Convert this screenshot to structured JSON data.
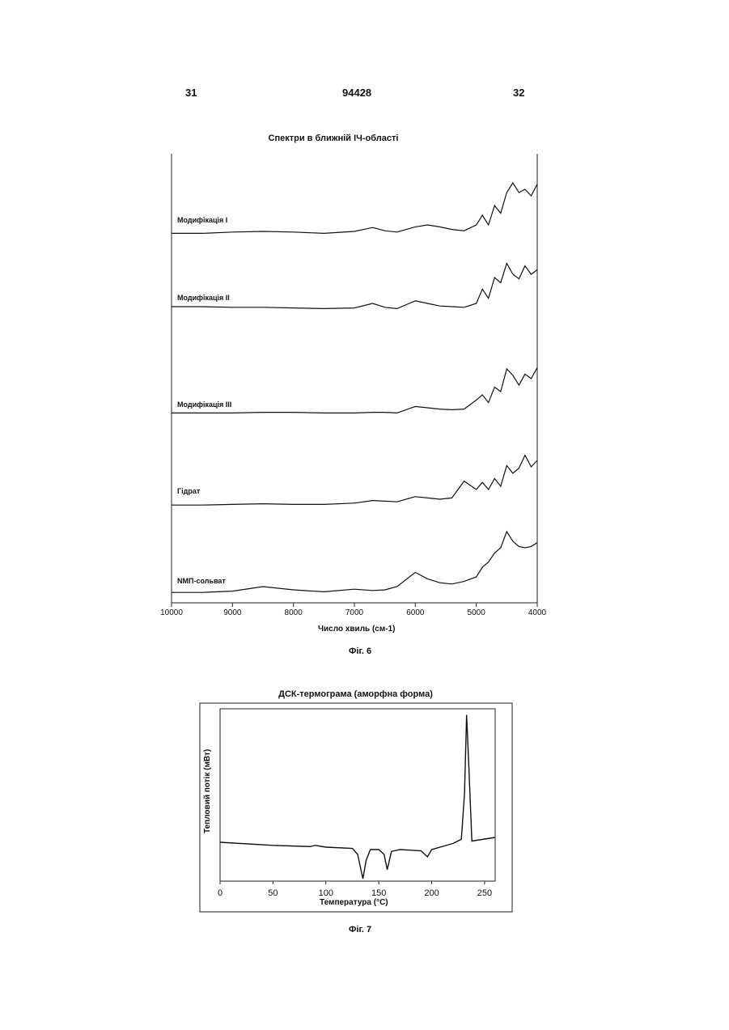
{
  "page_header": {
    "left": "31",
    "center": "94428",
    "right": "32"
  },
  "figure6": {
    "title": "Спектри в ближній ІЧ-області",
    "caption": "Фіг. 6",
    "xlabel": "Число хвиль (см-1)",
    "xticks": [
      "10000",
      "9000",
      "8000",
      "7000",
      "6000",
      "5000",
      "4000"
    ],
    "spectra_labels": [
      "Модифікація І",
      "Модифікація ІІ",
      "Модифікація ІІІ",
      "Гідрат",
      "NMП-сольват"
    ]
  },
  "figure7": {
    "title": "ДСК-термограма (аморфна форма)",
    "caption": "Фіг. 7",
    "xlabel": "Температура (°С)",
    "ylabel": "Тепловий потік (мВт)",
    "xticks": [
      "0",
      "50",
      "100",
      "150",
      "200",
      "250"
    ]
  },
  "chart_data": [
    {
      "type": "line",
      "title": "Спектри в ближній ІЧ-області",
      "xlabel": "Число хвиль (см-1)",
      "ylabel": "",
      "xlim": [
        10000,
        4000
      ],
      "x_reversed": true,
      "series": [
        {
          "name": "Модифікація І",
          "x": [
            10000,
            9500,
            9000,
            8500,
            8000,
            7500,
            7000,
            6700,
            6500,
            6300,
            6000,
            5800,
            5600,
            5400,
            5200,
            5000,
            4900,
            4800,
            4700,
            4600,
            4500,
            4400,
            4300,
            4200,
            4100,
            4000
          ],
          "values": [
            0.02,
            0.02,
            0.04,
            0.05,
            0.04,
            0.02,
            0.05,
            0.11,
            0.06,
            0.04,
            0.12,
            0.15,
            0.12,
            0.08,
            0.06,
            0.15,
            0.3,
            0.15,
            0.45,
            0.33,
            0.65,
            0.8,
            0.65,
            0.7,
            0.6,
            0.78
          ]
        },
        {
          "name": "Модифікація ІІ",
          "x": [
            10000,
            9500,
            9000,
            8500,
            8000,
            7500,
            7000,
            6700,
            6500,
            6300,
            6000,
            5800,
            5600,
            5400,
            5200,
            5000,
            4900,
            4800,
            4700,
            4600,
            4500,
            4400,
            4300,
            4200,
            4100,
            4000
          ],
          "values": [
            0.05,
            0.05,
            0.04,
            0.04,
            0.03,
            0.02,
            0.03,
            0.1,
            0.04,
            0.02,
            0.14,
            0.1,
            0.06,
            0.05,
            0.04,
            0.1,
            0.32,
            0.18,
            0.5,
            0.42,
            0.72,
            0.55,
            0.48,
            0.68,
            0.55,
            0.62
          ]
        },
        {
          "name": "Модифікація ІІІ",
          "x": [
            10000,
            9500,
            9000,
            8500,
            8000,
            7500,
            7000,
            6700,
            6500,
            6300,
            6000,
            5800,
            5600,
            5400,
            5200,
            5000,
            4900,
            4800,
            4700,
            4600,
            4500,
            4400,
            4300,
            4200,
            4100,
            4000
          ],
          "values": [
            0.02,
            0.02,
            0.02,
            0.03,
            0.03,
            0.02,
            0.02,
            0.03,
            0.03,
            0.02,
            0.12,
            0.1,
            0.08,
            0.07,
            0.08,
            0.22,
            0.3,
            0.18,
            0.42,
            0.35,
            0.7,
            0.6,
            0.45,
            0.62,
            0.55,
            0.72
          ]
        },
        {
          "name": "Гідрат",
          "x": [
            10000,
            9500,
            9000,
            8500,
            8000,
            7500,
            7000,
            6700,
            6500,
            6300,
            6000,
            5800,
            5600,
            5400,
            5200,
            5000,
            4900,
            4800,
            4700,
            4600,
            4500,
            4400,
            4300,
            4200,
            4100,
            4000
          ],
          "values": [
            0.01,
            0.01,
            0.02,
            0.03,
            0.02,
            0.02,
            0.04,
            0.08,
            0.07,
            0.06,
            0.14,
            0.12,
            0.1,
            0.12,
            0.38,
            0.25,
            0.36,
            0.25,
            0.42,
            0.3,
            0.62,
            0.5,
            0.58,
            0.78,
            0.6,
            0.7
          ]
        },
        {
          "name": "NMП-сольват",
          "x": [
            10000,
            9500,
            9000,
            8500,
            8000,
            7500,
            7000,
            6700,
            6500,
            6300,
            6000,
            5800,
            5600,
            5400,
            5200,
            5000,
            4900,
            4800,
            4700,
            4600,
            4500,
            4400,
            4300,
            4200,
            4100,
            4000
          ],
          "values": [
            0.01,
            0.01,
            0.03,
            0.1,
            0.05,
            0.02,
            0.06,
            0.04,
            0.05,
            0.1,
            0.32,
            0.22,
            0.16,
            0.14,
            0.18,
            0.25,
            0.4,
            0.48,
            0.62,
            0.7,
            0.95,
            0.8,
            0.72,
            0.7,
            0.72,
            0.78
          ]
        }
      ]
    },
    {
      "type": "line",
      "title": "ДСК-термограма (аморфна форма)",
      "xlabel": "Температура (°С)",
      "ylabel": "Тепловий потік (мВт)",
      "xlim": [
        0,
        260
      ],
      "series": [
        {
          "x": [
            0,
            50,
            85,
            90,
            100,
            125,
            130,
            135,
            138,
            142,
            150,
            155,
            158,
            162,
            170,
            190,
            196,
            200,
            220,
            228,
            231,
            233,
            235,
            238,
            245,
            260
          ],
          "values": [
            0.0,
            -0.05,
            -0.07,
            -0.05,
            -0.08,
            -0.1,
            -0.2,
            -0.6,
            -0.3,
            -0.12,
            -0.12,
            -0.2,
            -0.45,
            -0.15,
            -0.12,
            -0.14,
            -0.24,
            -0.12,
            -0.02,
            0.05,
            0.8,
            2.1,
            1.3,
            0.02,
            0.04,
            0.08
          ]
        }
      ]
    }
  ]
}
